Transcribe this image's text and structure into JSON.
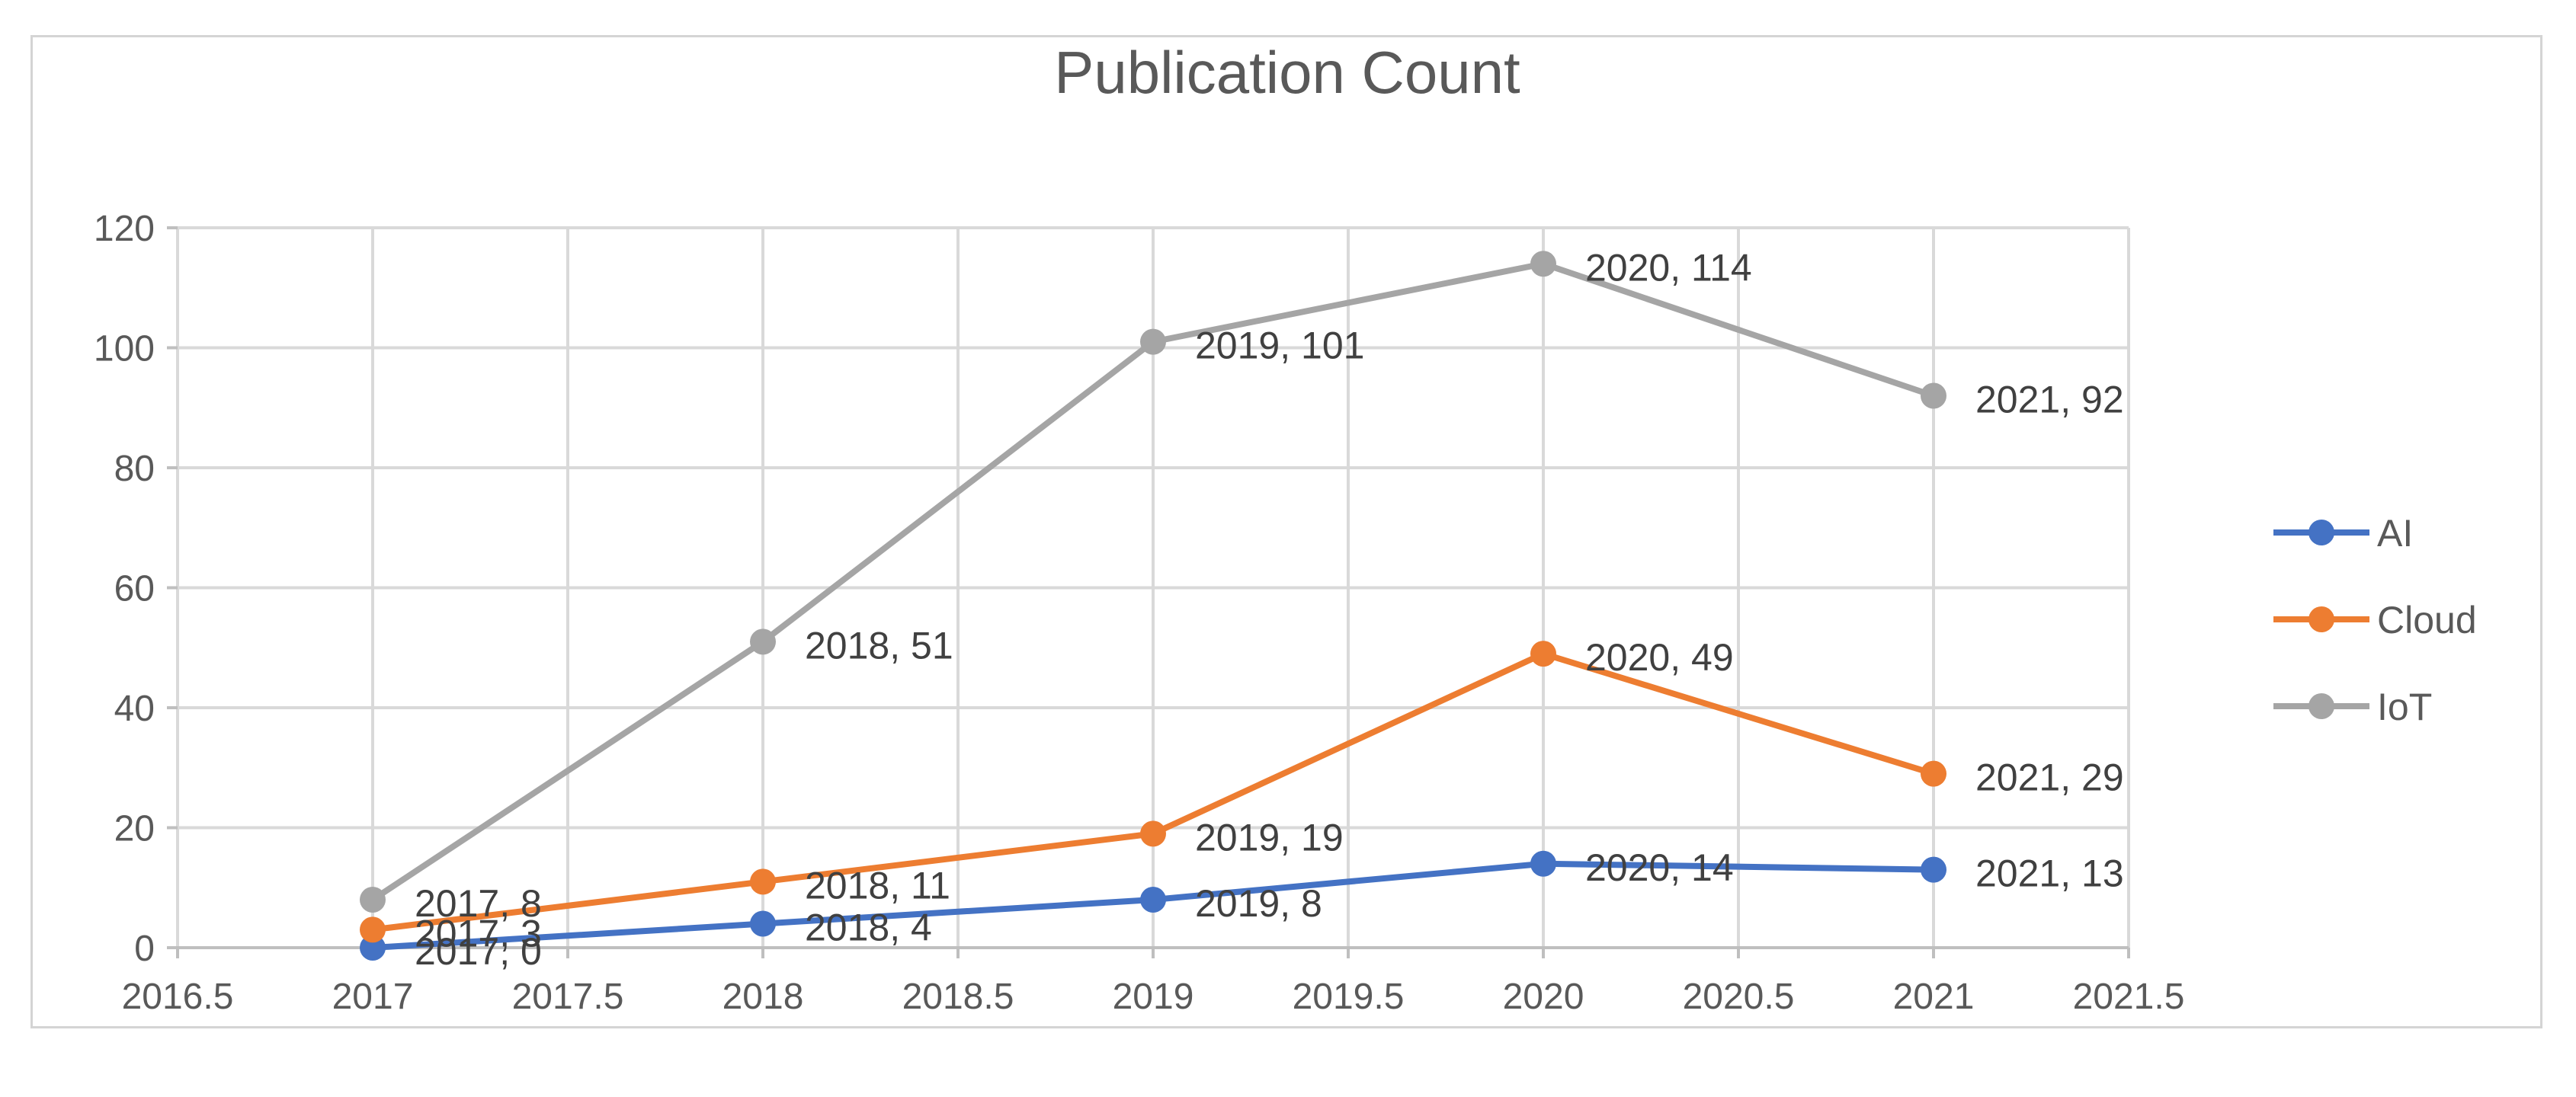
{
  "chart_data": {
    "type": "line",
    "title": "Publication Count",
    "xlabel": "",
    "ylabel": "",
    "xlim": [
      2016.5,
      2021.5
    ],
    "ylim": [
      0,
      120
    ],
    "x_ticks": [
      "2016.5",
      "2017",
      "2017.5",
      "2018",
      "2018.5",
      "2019",
      "2019.5",
      "2020",
      "2020.5",
      "2021",
      "2021.5"
    ],
    "y_ticks": [
      "0",
      "20",
      "40",
      "60",
      "80",
      "100",
      "120"
    ],
    "grid": true,
    "legend": "right",
    "x": [
      2017,
      2018,
      2019,
      2020,
      2021
    ],
    "series": [
      {
        "name": "AI",
        "color": "#4472C4",
        "values": [
          0,
          4,
          8,
          14,
          13
        ],
        "labels": [
          "2017, 0",
          "2018, 4",
          "2019, 8",
          "2020, 14",
          "2021, 13"
        ]
      },
      {
        "name": "Cloud",
        "color": "#ED7D31",
        "values": [
          3,
          11,
          19,
          49,
          29
        ],
        "labels": [
          "2017, 3",
          "2018, 11",
          "2019, 19",
          "2020, 49",
          "2021, 29"
        ]
      },
      {
        "name": "IoT",
        "color": "#A5A5A5",
        "values": [
          8,
          51,
          101,
          114,
          92
        ],
        "labels": [
          "2017, 8",
          "2018, 51",
          "2019, 101",
          "2020, 114",
          "2021, 92"
        ]
      }
    ]
  }
}
